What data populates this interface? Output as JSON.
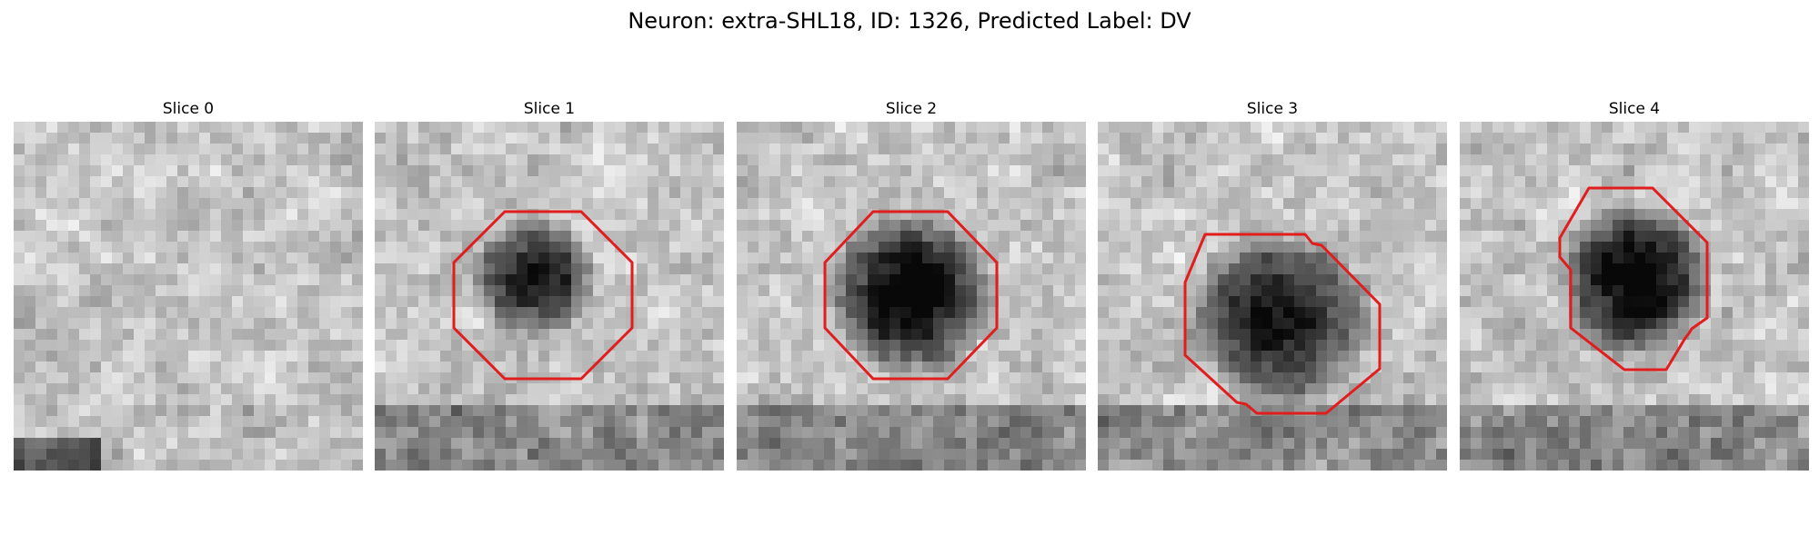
{
  "figure": {
    "title": "Neuron: extra-SHL18, ID: 1326, Predicted Label: DV",
    "contour_color": "#e11d1d"
  },
  "slices": [
    {
      "title": "Slice 0",
      "has_contour": false,
      "blob_darkness": 0.0
    },
    {
      "title": "Slice 1",
      "has_contour": true,
      "blob_darkness": 0.85
    },
    {
      "title": "Slice 2",
      "has_contour": true,
      "blob_darkness": 0.95
    },
    {
      "title": "Slice 3",
      "has_contour": true,
      "blob_darkness": 0.8
    },
    {
      "title": "Slice 4",
      "has_contour": true,
      "blob_darkness": 0.95
    }
  ]
}
